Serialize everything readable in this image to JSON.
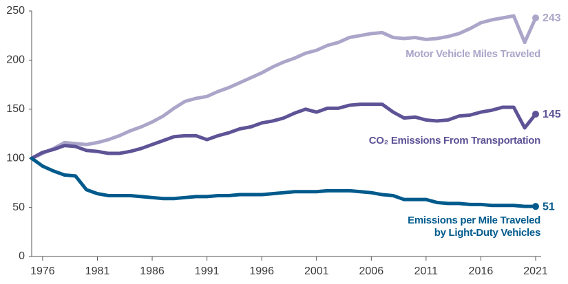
{
  "chart_data": {
    "type": "line",
    "x": [
      1975,
      1976,
      1977,
      1978,
      1979,
      1980,
      1981,
      1982,
      1983,
      1984,
      1985,
      1986,
      1987,
      1988,
      1989,
      1990,
      1991,
      1992,
      1993,
      1994,
      1995,
      1996,
      1997,
      1998,
      1999,
      2000,
      2001,
      2002,
      2003,
      2004,
      2005,
      2006,
      2007,
      2008,
      2009,
      2010,
      2011,
      2012,
      2013,
      2014,
      2015,
      2016,
      2017,
      2018,
      2019,
      2020,
      2021
    ],
    "xlim": [
      1975,
      2021
    ],
    "xticks": [
      1976,
      1981,
      1986,
      1991,
      1996,
      2001,
      2006,
      2011,
      2016,
      2021
    ],
    "ylim": [
      0,
      250
    ],
    "yticks": [
      0,
      50,
      100,
      150,
      200,
      250
    ],
    "grid": false,
    "series": [
      {
        "name": "Motor Vehicle Miles Traveled",
        "color": "#aba6c9",
        "values": [
          100,
          105,
          110,
          116,
          115,
          114,
          116,
          119,
          123,
          128,
          132,
          137,
          143,
          151,
          158,
          161,
          163,
          168,
          172,
          177,
          182,
          187,
          193,
          198,
          202,
          207,
          210,
          215,
          218,
          223,
          225,
          227,
          228,
          223,
          222,
          223,
          221,
          222,
          224,
          227,
          232,
          238,
          241,
          243,
          245,
          218,
          243
        ]
      },
      {
        "name": "CO₂ Emissions From Transportation",
        "color": "#5e5396",
        "values": [
          100,
          106,
          109,
          113,
          112,
          108,
          107,
          105,
          105,
          107,
          110,
          114,
          118,
          122,
          123,
          123,
          119,
          123,
          126,
          130,
          132,
          136,
          138,
          141,
          146,
          150,
          147,
          151,
          151,
          154,
          155,
          155,
          155,
          147,
          141,
          142,
          139,
          138,
          139,
          143,
          144,
          147,
          149,
          152,
          152,
          131,
          145
        ]
      },
      {
        "name": "Emissions per Mile Traveled\nby Light-Duty Vehicles",
        "color": "#005a8c",
        "values": [
          100,
          92,
          87,
          83,
          82,
          68,
          64,
          62,
          62,
          62,
          61,
          60,
          59,
          59,
          60,
          61,
          61,
          62,
          62,
          63,
          63,
          63,
          64,
          65,
          66,
          66,
          66,
          67,
          67,
          67,
          66,
          65,
          63,
          62,
          58,
          58,
          58,
          55,
          54,
          54,
          53,
          53,
          52,
          52,
          52,
          51,
          51
        ]
      }
    ]
  }
}
